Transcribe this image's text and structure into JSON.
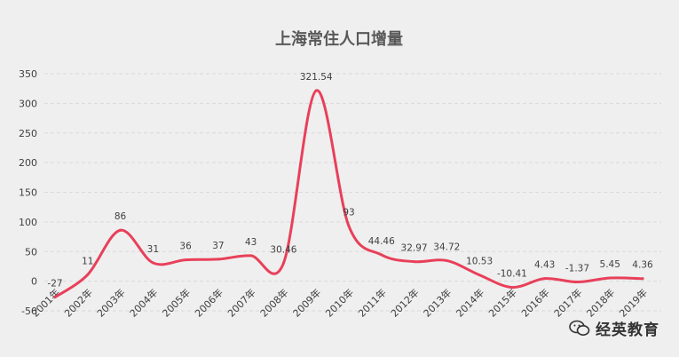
{
  "chart_data": {
    "type": "line",
    "title": "上海常住人口增量",
    "xlabel": "",
    "ylabel": "",
    "categories": [
      "2001年",
      "2002年",
      "2003年",
      "2004年",
      "2005年",
      "2006年",
      "2007年",
      "2008年",
      "2009年",
      "2010年",
      "2011年",
      "2012年",
      "2013年",
      "2014年",
      "2015年",
      "2016年",
      "2017年",
      "2018年",
      "2019年"
    ],
    "series": [
      {
        "values": [
          -27,
          11,
          86,
          31,
          36,
          37,
          43,
          30.46,
          321.54,
          93,
          44.46,
          32.97,
          34.72,
          10.53,
          -10.41,
          4.43,
          -1.37,
          5.45,
          4.36
        ]
      }
    ],
    "data_labels": [
      "-27",
      "11",
      "86",
      "31",
      "36",
      "37",
      "43",
      "30.46",
      "321.54",
      "93",
      "44.46",
      "32.97",
      "34.72",
      "10.53",
      "-10.41",
      "4.43",
      "-1.37",
      "5.45",
      "4.36"
    ],
    "ylim": [
      -50,
      350
    ],
    "yticks": [
      -50,
      0,
      50,
      100,
      150,
      200,
      250,
      300,
      350
    ],
    "grid": true,
    "legend": "none",
    "colors": {
      "line": "#e8405a",
      "background": "#efefef"
    }
  },
  "watermark": {
    "text": "经英教育",
    "icon": "wechat-icon"
  }
}
